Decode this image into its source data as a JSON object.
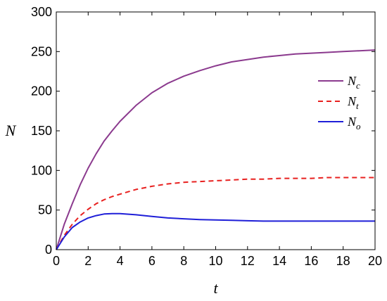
{
  "chart_data": {
    "type": "line",
    "xlabel": "t",
    "ylabel": "N",
    "xlim": [
      0,
      20
    ],
    "ylim": [
      0,
      300
    ],
    "xticks": [
      0,
      2,
      4,
      6,
      8,
      10,
      12,
      14,
      16,
      18,
      20
    ],
    "yticks": [
      0,
      50,
      100,
      150,
      200,
      250,
      300
    ],
    "grid": false,
    "legend_position": "right",
    "series": [
      {
        "name": "N",
        "subscript": "c",
        "color": "#8B3A8E",
        "style": "solid",
        "x": [
          0,
          0.5,
          1,
          1.5,
          2,
          2.5,
          3,
          3.5,
          4,
          5,
          6,
          7,
          8,
          9,
          10,
          11,
          12,
          13,
          14,
          15,
          16,
          17,
          18,
          19,
          20
        ],
        "y": [
          0,
          32,
          58,
          82,
          103,
          121,
          137,
          150,
          162,
          182,
          198,
          210,
          219,
          226,
          232,
          237,
          240,
          243,
          245,
          247,
          248,
          249,
          250,
          251,
          252
        ]
      },
      {
        "name": "N",
        "subscript": "t",
        "color": "#E8201F",
        "style": "dashed",
        "x": [
          0,
          0.5,
          1,
          1.5,
          2,
          2.5,
          3,
          3.5,
          4,
          5,
          6,
          7,
          8,
          9,
          10,
          11,
          12,
          13,
          14,
          15,
          16,
          17,
          18,
          19,
          20
        ],
        "y": [
          0,
          18,
          32,
          43,
          51,
          58,
          63,
          67,
          70,
          76,
          80,
          83,
          85,
          86,
          87,
          88,
          89,
          89,
          90,
          90,
          90,
          91,
          91,
          91,
          91
        ]
      },
      {
        "name": "N",
        "subscript": "o",
        "color": "#1F1FD8",
        "style": "solid",
        "x": [
          0,
          0.5,
          1,
          1.5,
          2,
          2.5,
          3,
          3.5,
          4,
          5,
          6,
          7,
          8,
          9,
          10,
          11,
          12,
          13,
          14,
          15,
          16,
          17,
          18,
          19,
          20
        ],
        "y": [
          0,
          16,
          28,
          35,
          40,
          43,
          45,
          45.5,
          45.5,
          44,
          42,
          40,
          39,
          38,
          37.5,
          37,
          36.5,
          36,
          36,
          36,
          36,
          36,
          36,
          36,
          36
        ]
      }
    ]
  }
}
